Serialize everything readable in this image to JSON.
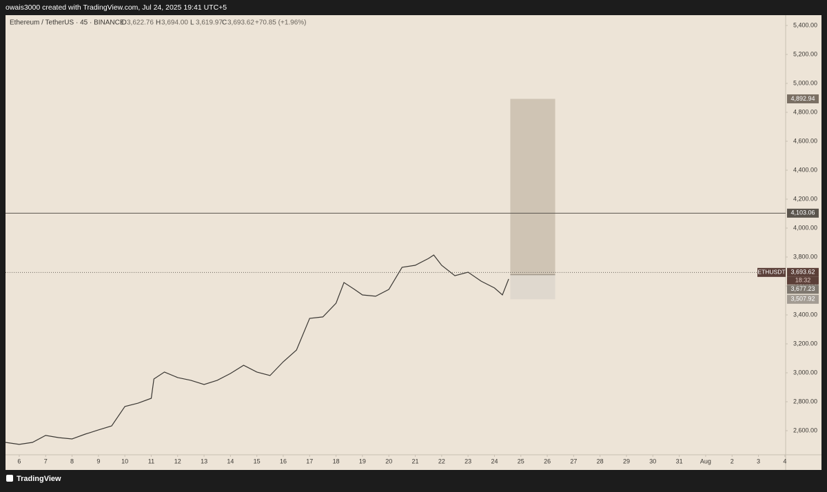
{
  "header": {
    "credit": "owais3000 created with TradingView.com, Jul 24, 2025 19:41 UTC+5"
  },
  "legend": {
    "title": "Ethereum / TetherUS · 45 · BINANCE",
    "items": [
      {
        "key": "O",
        "value": "3,622.76"
      },
      {
        "key": "H",
        "value": "3,694.00"
      },
      {
        "key": "L",
        "value": "3,619.97"
      },
      {
        "key": "C",
        "value": "3,693.62"
      }
    ],
    "change": "+70.85 (+1.96%)"
  },
  "footer": {
    "brand": "TradingView"
  },
  "chart_data": {
    "type": "line",
    "color": "#3a3733",
    "x": [
      5.48,
      6,
      6.5,
      7,
      7.5,
      8,
      8.5,
      9,
      9.5,
      10,
      10.5,
      11,
      11.1,
      11.5,
      12,
      12.5,
      13,
      13.5,
      14,
      14.5,
      15,
      15.5,
      16,
      16.5,
      17,
      17.5,
      18,
      18.3,
      18.7,
      19,
      19.5,
      20,
      20.5,
      21,
      21.5,
      21.7,
      22,
      22.5,
      23,
      23.5,
      24,
      24.3,
      24.54
    ],
    "values": [
      2519,
      2505,
      2519,
      2567,
      2552,
      2543,
      2576,
      2605,
      2633,
      2767,
      2790,
      2824,
      2957,
      3005,
      2967,
      2948,
      2919,
      2948,
      2995,
      3052,
      3005,
      2981,
      3076,
      3157,
      3376,
      3386,
      3481,
      3624,
      3576,
      3538,
      3529,
      3576,
      3729,
      3743,
      3790,
      3814,
      3743,
      3671,
      3695,
      3633,
      3586,
      3538,
      3648
    ],
    "xlim": [
      5.48,
      35.03
    ],
    "xticks": [
      6,
      7,
      8,
      9,
      10,
      11,
      12,
      13,
      14,
      15,
      16,
      17,
      18,
      19,
      20,
      21,
      22,
      23,
      24,
      25,
      26,
      27,
      28,
      29,
      30,
      31,
      {
        "value": 32,
        "label": "Aug"
      },
      {
        "value": 33,
        "label": "2"
      },
      {
        "value": 34,
        "label": "3"
      },
      {
        "value": 35,
        "label": "4"
      }
    ],
    "ylim": [
      2433.3,
      5471.4
    ],
    "yticks": [
      {
        "value": 2600,
        "label": "2,600.00"
      },
      {
        "value": 2800,
        "label": "2,800.00"
      },
      {
        "value": 3000,
        "label": "3,000.00"
      },
      {
        "value": 3200,
        "label": "3,200.00"
      },
      {
        "value": 3400,
        "label": "3,400.00"
      },
      {
        "value": 3600,
        "label": "3,600.00"
      },
      {
        "value": 3800,
        "label": "3,800.00"
      },
      {
        "value": 4000,
        "label": "4,000.00"
      },
      {
        "value": 4200,
        "label": "4,200.00"
      },
      {
        "value": 4400,
        "label": "4,400.00"
      },
      {
        "value": 4600,
        "label": "4,600.00"
      },
      {
        "value": 4800,
        "label": "4,800.00"
      },
      {
        "value": 5000,
        "label": "5,000.00"
      },
      {
        "value": 5200,
        "label": "5,200.00"
      },
      {
        "value": 5400,
        "label": "5,400.00"
      }
    ],
    "level": {
      "value": 4103.06,
      "label": "4,103.06"
    },
    "last_price": {
      "symbol": "ETHUSDT",
      "value": 3693.62,
      "label": "3,693.62",
      "countdown": "18:32"
    },
    "position": {
      "x_start": 24.6,
      "x_end": 26.3,
      "top": {
        "value": 4892.94,
        "label": "4,892.94"
      },
      "entry": {
        "value": 3677.23,
        "label": "3,677.23"
      },
      "bottom": {
        "value": 3507.92,
        "label": "3,507.92"
      }
    }
  }
}
